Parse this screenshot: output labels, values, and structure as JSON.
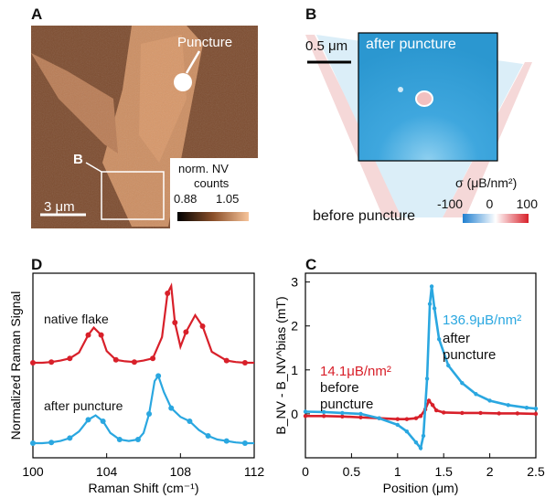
{
  "panels": {
    "A": {
      "letter": "A",
      "puncture_label": "Puncture",
      "roi_label": "B",
      "scalebar_label": "3 μm",
      "colorbar_title_line1": "norm. NV",
      "colorbar_title_line2": "counts",
      "colorbar_min": "0.88",
      "colorbar_max": "1.05",
      "colors": {
        "background": "#7a4a2e",
        "flake": "#d99a6c",
        "colorbar_low": "#000000",
        "colorbar_high": "#f7c49a"
      }
    },
    "B": {
      "letter": "B",
      "scalebar_label": "0.5 μm",
      "inset_label": "after puncture",
      "outer_label": "before puncture",
      "colorbar_title": "σ (μB/nm²)",
      "colorbar_ticks": [
        "-100",
        "0",
        "100"
      ],
      "colors": {
        "inset_fill": "#2e9fd6",
        "low": "#1f7fd0",
        "mid": "#ffffff",
        "high": "#d8202a"
      }
    },
    "D": {
      "letter": "D",
      "label_native": "native flake",
      "label_after": "after puncture"
    },
    "C": {
      "letter": "C",
      "label_after_value": "136.9μB/nm²",
      "label_after_line1": "after",
      "label_after_line2": "puncture",
      "label_before_value": "14.1μB/nm²",
      "label_before_line1": "before",
      "label_before_line2": "puncture"
    }
  },
  "chart_data": [
    {
      "type": "line",
      "panel": "D",
      "xlabel": "Raman Shift (cm⁻¹)",
      "ylabel": "Normalized Raman Signal",
      "xlim": [
        100,
        112
      ],
      "x_ticks": [
        100,
        104,
        108,
        112
      ],
      "grid": false,
      "series": [
        {
          "name": "native flake",
          "color": "#d8202a",
          "points_x": [
            100.0,
            100.5,
            101.0,
            101.5,
            102.0,
            102.5,
            103.0,
            103.3,
            103.7,
            104.0,
            104.5,
            105.0,
            105.5,
            106.0,
            106.5,
            107.0,
            107.3,
            107.5,
            107.7,
            108.0,
            108.3,
            108.8,
            109.2,
            109.7,
            110.5,
            111.0,
            111.5,
            112.0
          ],
          "points_y": [
            0.0,
            0.0,
            0.01,
            0.03,
            0.06,
            0.14,
            0.38,
            0.48,
            0.38,
            0.16,
            0.04,
            0.02,
            0.01,
            0.03,
            0.06,
            0.35,
            0.95,
            1.05,
            0.55,
            0.22,
            0.42,
            0.65,
            0.5,
            0.15,
            0.03,
            0.01,
            0.0,
            0.0
          ]
        },
        {
          "name": "after puncture",
          "color": "#2aa7e0",
          "points_x": [
            100.0,
            100.5,
            101.0,
            101.5,
            102.0,
            102.5,
            103.0,
            103.4,
            103.8,
            104.2,
            104.7,
            105.2,
            105.7,
            106.0,
            106.3,
            106.6,
            106.8,
            107.1,
            107.5,
            108.0,
            108.5,
            109.0,
            109.5,
            110.0,
            110.5,
            111.0,
            111.5,
            112.0
          ],
          "points_y": [
            0.0,
            0.0,
            0.01,
            0.03,
            0.07,
            0.16,
            0.32,
            0.38,
            0.3,
            0.14,
            0.05,
            0.03,
            0.05,
            0.14,
            0.4,
            0.85,
            0.92,
            0.7,
            0.48,
            0.36,
            0.3,
            0.18,
            0.1,
            0.05,
            0.03,
            0.01,
            0.0,
            0.0
          ]
        }
      ]
    },
    {
      "type": "line",
      "panel": "C",
      "xlabel": "Position (μm)",
      "ylabel": "B_NV - B_NV^bias (mT)",
      "xlim": [
        0,
        2.5
      ],
      "ylim": [
        -1,
        3.2
      ],
      "x_ticks": [
        "0",
        "0.5",
        "1",
        "1.5",
        "2",
        "2.5"
      ],
      "y_ticks": [
        0,
        1,
        2,
        3
      ],
      "grid": false,
      "series": [
        {
          "name": "before puncture",
          "color": "#d8202a",
          "x": [
            0.0,
            0.2,
            0.4,
            0.6,
            0.8,
            1.0,
            1.1,
            1.2,
            1.25,
            1.3,
            1.34,
            1.38,
            1.42,
            1.5,
            1.7,
            1.9,
            2.1,
            2.3,
            2.5
          ],
          "y": [
            -0.05,
            -0.05,
            -0.06,
            -0.08,
            -0.1,
            -0.12,
            -0.12,
            -0.1,
            -0.05,
            0.1,
            0.3,
            0.2,
            0.08,
            0.03,
            0.02,
            0.02,
            0.01,
            0.01,
            0.0
          ]
        },
        {
          "name": "after puncture",
          "color": "#2aa7e0",
          "x": [
            0.0,
            0.2,
            0.4,
            0.6,
            0.8,
            1.0,
            1.1,
            1.2,
            1.25,
            1.28,
            1.32,
            1.35,
            1.37,
            1.4,
            1.45,
            1.55,
            1.7,
            1.85,
            2.0,
            2.2,
            2.4,
            2.5
          ],
          "y": [
            0.05,
            0.04,
            0.02,
            0.0,
            -0.1,
            -0.25,
            -0.4,
            -0.65,
            -0.78,
            -0.5,
            0.8,
            2.5,
            2.9,
            2.4,
            1.7,
            1.1,
            0.7,
            0.45,
            0.3,
            0.2,
            0.14,
            0.12
          ]
        }
      ]
    }
  ]
}
